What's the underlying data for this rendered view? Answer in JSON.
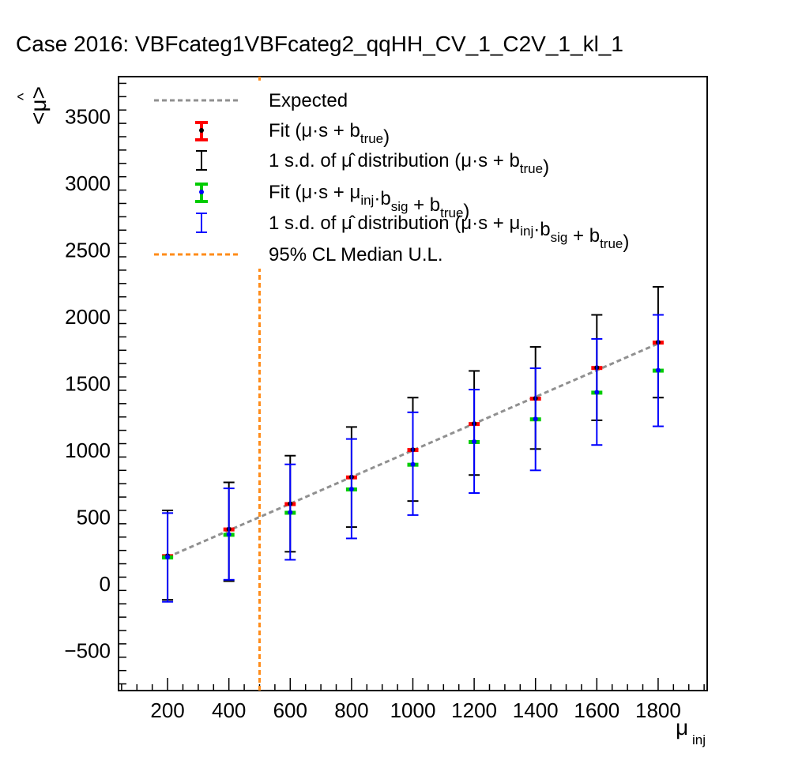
{
  "chart_data": {
    "type": "scatter",
    "title": "Case 2016: VBFcateg1VBFcateg2_qqHH_CV_1_C2V_1_kl_1",
    "xlabel": "μ",
    "xlabel_sub": "inj",
    "ylabel": "<μ>",
    "xlim": [
      40,
      1960
    ],
    "ylim": [
      -800,
      3800
    ],
    "xticks": [
      "200",
      "400",
      "600",
      "800",
      "1000",
      "1200",
      "1400",
      "1600",
      "1800"
    ],
    "yticks": [
      "−500",
      "0",
      "500",
      "1000",
      "1500",
      "2000",
      "2500",
      "3000",
      "3500"
    ],
    "grid": false,
    "legend_position": "top-left",
    "colors": {
      "expected": "#909090",
      "fit_true": "#ff0000",
      "sd_true": "#000000",
      "fit_sig": "#00cc00",
      "sd_sig": "#0000ff",
      "cl_line": "#ff8c1a"
    },
    "legend": [
      {
        "text": "Expected"
      },
      {
        "text": "Fit (μ·s + b",
        "sub": "true",
        "tail": ")"
      },
      {
        "text": "1 s.d. of μ̂ distribution (μ·s + b",
        "sub": "true",
        "tail": ")"
      },
      {
        "text": "Fit (μ·s + μ",
        "sub": "inj",
        "mid": "·b",
        "sub2": "sig",
        "mid2": " + b",
        "sub3": "true",
        "tail": ")"
      },
      {
        "text": "1 s.d. of μ̂ distribution (μ·s + μ",
        "sub": "inj",
        "mid": "·b",
        "sub2": "sig",
        "mid2": " + b",
        "sub3": "true",
        "tail": ")"
      },
      {
        "text": "95% CL Median U.L."
      }
    ],
    "expected": {
      "x": [
        200,
        1800
      ],
      "y": [
        200,
        1800
      ]
    },
    "cl_median_ul": 500,
    "series": [
      {
        "name": "Fit (μ·s + b_true)",
        "x": [
          200,
          400,
          600,
          800,
          1000,
          1200,
          1400,
          1600,
          1800
        ],
        "y": [
          210,
          410,
          600,
          800,
          1005,
          1200,
          1390,
          1620,
          1810
        ],
        "fit_err": [
          12,
          12,
          12,
          12,
          12,
          12,
          12,
          12,
          12
        ],
        "sd_low": [
          -120,
          20,
          240,
          425,
          620,
          815,
          1010,
          1225,
          1395
        ],
        "sd_high": [
          550,
          760,
          960,
          1175,
          1395,
          1595,
          1775,
          2015,
          2225
        ]
      },
      {
        "name": "Fit (μ·s + μ_inj·b_sig + b_true)",
        "x": [
          200,
          400,
          600,
          800,
          1000,
          1200,
          1400,
          1600,
          1800
        ],
        "y": [
          200,
          370,
          535,
          710,
          895,
          1065,
          1235,
          1435,
          1600
        ],
        "fit_err": [
          12,
          12,
          12,
          12,
          12,
          12,
          12,
          12,
          12
        ],
        "sd_low": [
          -135,
          30,
          180,
          340,
          515,
          680,
          850,
          1040,
          1180
        ],
        "sd_high": [
          530,
          715,
          895,
          1085,
          1285,
          1455,
          1615,
          1835,
          2015
        ]
      }
    ]
  }
}
